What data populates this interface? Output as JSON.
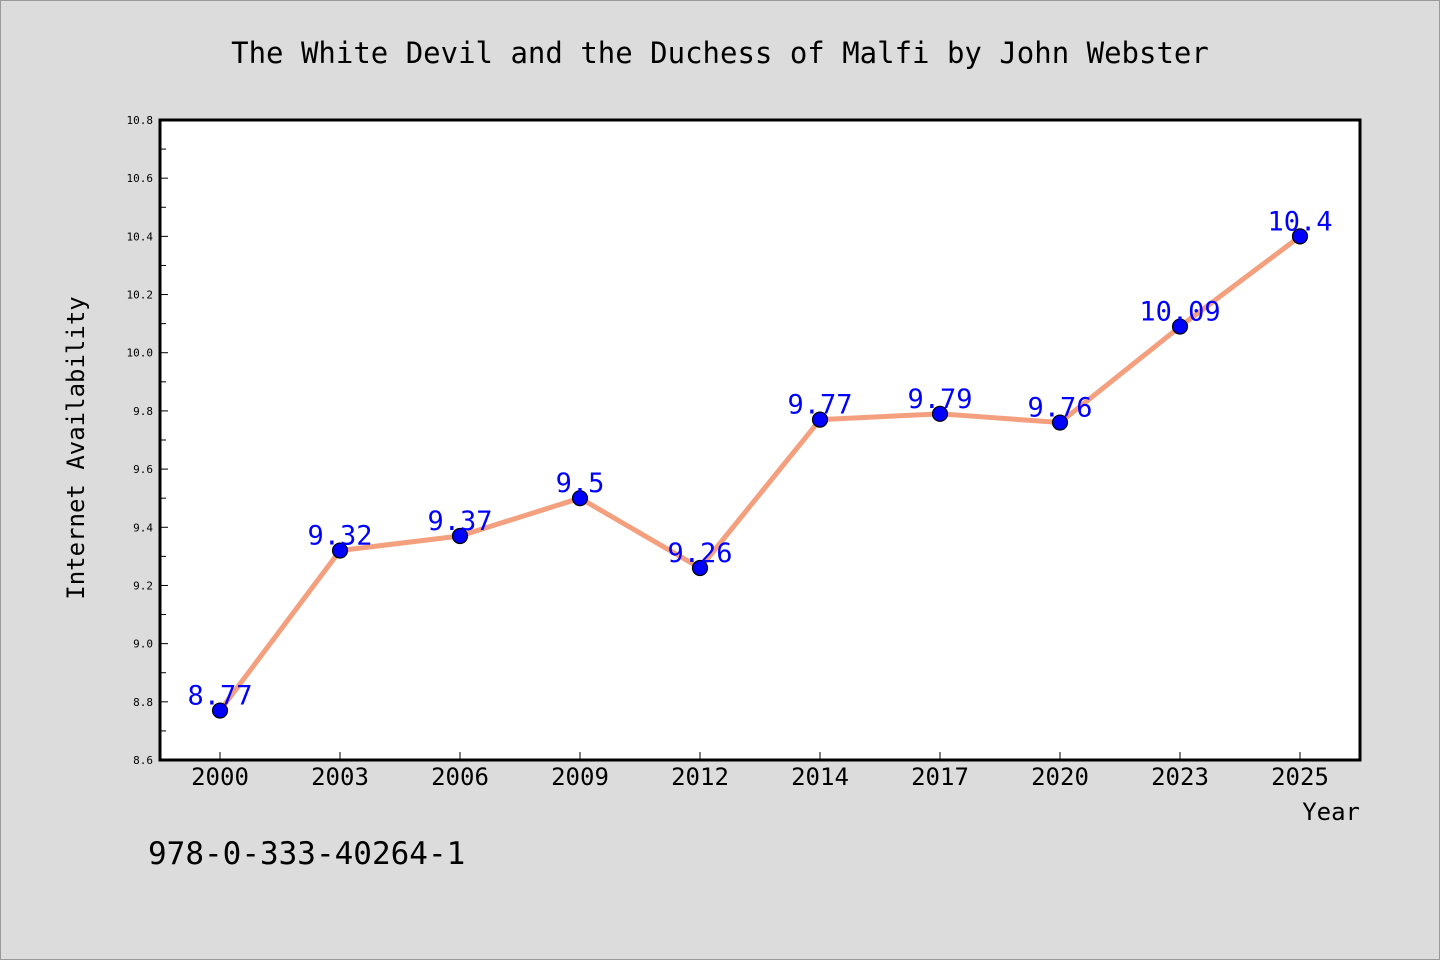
{
  "chart_data": {
    "type": "line",
    "title": "The White Devil and the Duchess of Malfi by John Webster",
    "xlabel": "Year",
    "ylabel": "Internet Availability",
    "categories": [
      "2000",
      "2003",
      "2006",
      "2009",
      "2012",
      "2014",
      "2017",
      "2020",
      "2023",
      "2025"
    ],
    "series": [
      {
        "values": [
          8.77,
          9.32,
          9.37,
          9.5,
          9.26,
          9.77,
          9.79,
          9.76,
          10.09,
          10.4
        ],
        "data_labels": [
          "8.77",
          "9.32",
          "9.37",
          "9.5",
          "9.26",
          "9.77",
          "9.79",
          "9.76",
          "10.09",
          "10.4"
        ]
      }
    ],
    "ylim": [
      8.6,
      10.8
    ],
    "yticks": [
      "8.6",
      "8.8",
      "9.0",
      "9.2",
      "9.4",
      "9.6",
      "9.8",
      "10.0",
      "10.2",
      "10.4",
      "10.6",
      "10.8"
    ],
    "grid": false,
    "legend": "none",
    "colors": {
      "line": "#f4a07e",
      "marker": "#0000ff",
      "marker_edge": "#000000",
      "data_label": "#0000ff",
      "background": "#dcdcdc",
      "plot_background": "#ffffff"
    }
  },
  "footer": {
    "isbn": "978-0-333-40264-1"
  }
}
